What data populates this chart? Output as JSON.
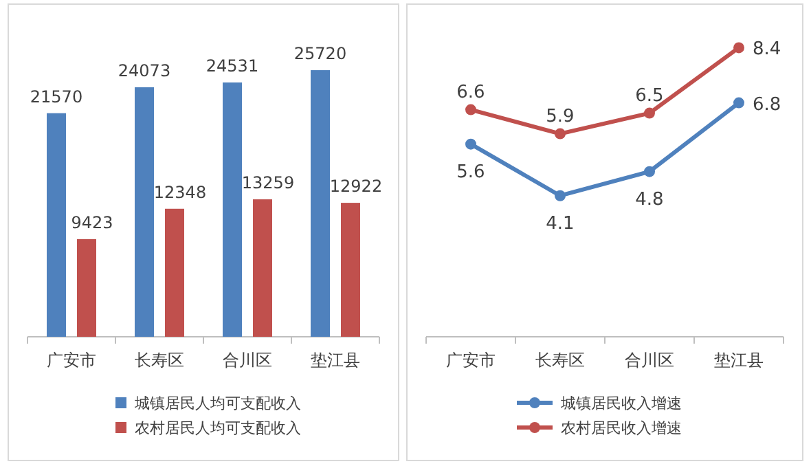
{
  "chart_data": [
    {
      "type": "bar",
      "categories": [
        "广安市",
        "长寿区",
        "合川区",
        "垫江县"
      ],
      "data_labels": true,
      "legend": "bottom",
      "series": [
        {
          "name": "城镇居民人均可支配收入",
          "color": "#4f81bd",
          "values": [
            21570,
            24073,
            24531,
            25720
          ]
        },
        {
          "name": "农村居民人均可支配收入",
          "color": "#c0504d",
          "values": [
            9423,
            12348,
            13259,
            12922
          ]
        }
      ]
    },
    {
      "type": "line",
      "categories": [
        "广安市",
        "长寿区",
        "合川区",
        "垫江县"
      ],
      "data_labels": true,
      "legend": "bottom",
      "marker": "circle",
      "series": [
        {
          "name": "城镇居民收入增速",
          "color": "#4f81bd",
          "values": [
            5.6,
            4.1,
            4.8,
            6.8
          ]
        },
        {
          "name": "农村居民收入增速",
          "color": "#c0504d",
          "values": [
            6.6,
            5.9,
            6.5,
            8.4
          ]
        }
      ]
    }
  ]
}
